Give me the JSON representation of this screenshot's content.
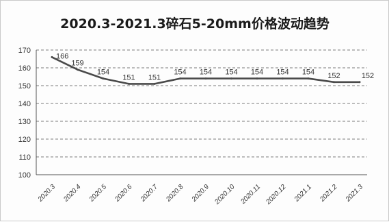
{
  "chart_data": {
    "type": "line",
    "title": "2020.3-2021.3碎石5-20mm价格波动趋势",
    "xlabel": "",
    "ylabel": "",
    "categories": [
      "2020.3",
      "2020.4",
      "2020.5",
      "2020.6",
      "2020.7",
      "2020.8",
      "2020.9",
      "2020.10",
      "2020.11",
      "2020.12",
      "2021.1",
      "2021.2",
      "2021.3"
    ],
    "series": [
      {
        "values": [
          166,
          159,
          154,
          151,
          151,
          154,
          154,
          154,
          154,
          154,
          154,
          152,
          152
        ]
      }
    ],
    "data_labels": [
      "166",
      "159",
      "154",
      "151",
      "151",
      "154",
      "154",
      "154",
      "154",
      "154",
      "154",
      "152",
      "152"
    ],
    "ylim": [
      100,
      170
    ],
    "yticks": [
      100,
      110,
      120,
      130,
      140,
      150,
      160,
      170
    ],
    "grid": true,
    "legend": "none",
    "colors": {
      "line": "#4a4a4a",
      "grid": "#7a7a7a"
    }
  }
}
